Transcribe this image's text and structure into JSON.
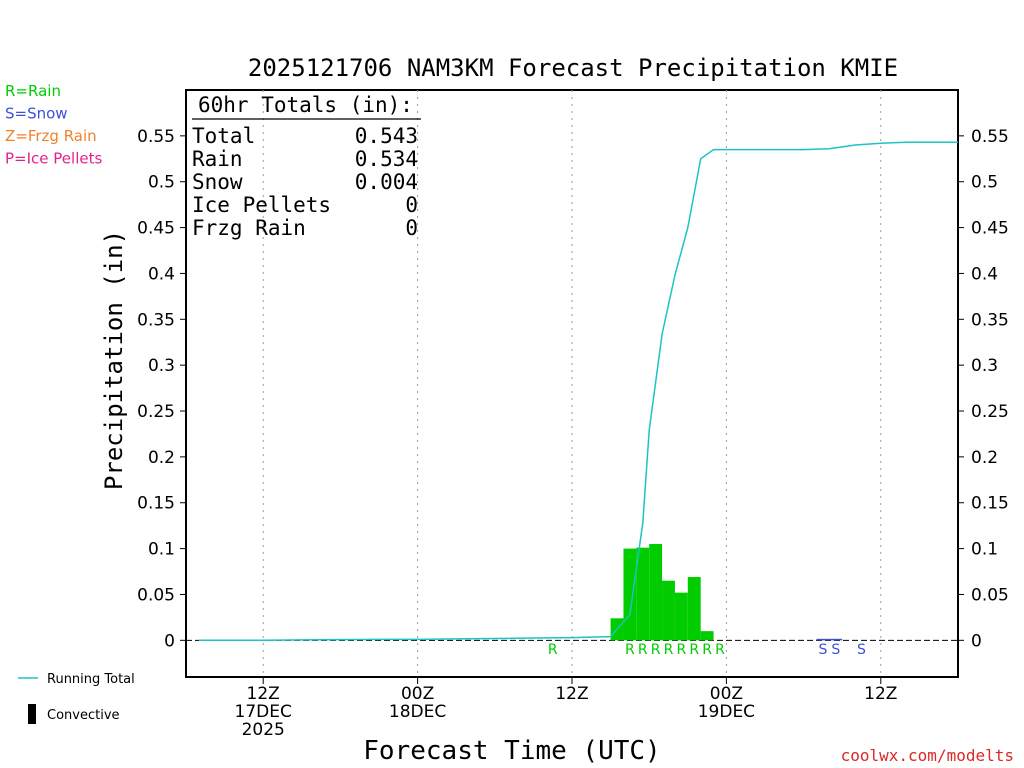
{
  "chart_data": {
    "type": "bar",
    "title": "2025121706 NAM3KM Forecast Precipitation KMIE",
    "xlabel": "Forecast Time (UTC)",
    "ylabel": "Precipitation (in)",
    "ylim": [
      -0.04,
      0.6
    ],
    "yticks": [
      0,
      0.05,
      0.1,
      0.15,
      0.2,
      0.25,
      0.3,
      0.35,
      0.4,
      0.45,
      0.5,
      0.55
    ],
    "ytick_labels": [
      "0",
      "0.05",
      "0.1",
      "0.15",
      "0.2",
      "0.25",
      "0.3",
      "0.35",
      "0.4",
      "0.45",
      "0.5",
      "0.55"
    ],
    "x_axis": {
      "unit": "forecast hour",
      "xlim": [
        0,
        60
      ],
      "ticks": [
        {
          "hour": 6,
          "lines": [
            "12Z",
            "17DEC",
            "2025"
          ]
        },
        {
          "hour": 18,
          "lines": [
            "00Z",
            "18DEC"
          ]
        },
        {
          "hour": 30,
          "lines": [
            "12Z"
          ]
        },
        {
          "hour": 42,
          "lines": [
            "00Z",
            "19DEC"
          ]
        },
        {
          "hour": 54,
          "lines": [
            "12Z"
          ]
        }
      ]
    },
    "grid": "vertical dotted at 12-hour ticks",
    "totals_box": {
      "heading": "60hr Totals (in):",
      "rows": [
        {
          "label": "Total",
          "value": "0.543"
        },
        {
          "label": "Rain",
          "value": "0.534"
        },
        {
          "label": "Snow",
          "value": "0.004"
        },
        {
          "label": "Ice Pellets",
          "value": "0"
        },
        {
          "label": "Frzg Rain",
          "value": "0"
        }
      ]
    },
    "type_legend": [
      {
        "text": "R=Rain",
        "color": "#00cc00"
      },
      {
        "text": "S=Snow",
        "color": "#3c50dc"
      },
      {
        "text": "Z=Frzg Rain",
        "color": "#f0822d"
      },
      {
        "text": "P=Ice Pellets",
        "color": "#e6208a"
      }
    ],
    "series": [
      {
        "name": "Running Total",
        "type": "line",
        "color": "#1ec3c3",
        "x": [
          1,
          3,
          6,
          9,
          12,
          15,
          18,
          21,
          24,
          27,
          30,
          33,
          34.5,
          35.5,
          36,
          37,
          38,
          39,
          40,
          41,
          42,
          43,
          44,
          46,
          48,
          50,
          52,
          54,
          56,
          58,
          60
        ],
        "y": [
          0,
          0,
          0,
          0.0005,
          0.0008,
          0.001,
          0.001,
          0.0015,
          0.002,
          0.0025,
          0.003,
          0.004,
          0.028,
          0.128,
          0.229,
          0.334,
          0.398,
          0.45,
          0.525,
          0.535,
          0.535,
          0.535,
          0.535,
          0.535,
          0.535,
          0.536,
          0.54,
          0.542,
          0.543,
          0.543,
          0.543
        ]
      },
      {
        "name": "Rain",
        "type": "bar",
        "color": "#00cc00",
        "bar_width_hours": 1,
        "hours": [
          34,
          35,
          36,
          37,
          38,
          39,
          40,
          41,
          42
        ],
        "values": [
          0.024,
          0.1,
          0.101,
          0.105,
          0.065,
          0.052,
          0.069,
          0.01,
          0.0
        ]
      },
      {
        "name": "Snow",
        "type": "bar",
        "color": "#3c50dc",
        "bar_width_hours": 1,
        "hours": [
          50,
          51
        ],
        "values": [
          0.0015,
          0.0015
        ]
      },
      {
        "name": "Convective",
        "type": "bar",
        "color": "#000000",
        "values": []
      }
    ],
    "type_markers": [
      {
        "hour": 29,
        "text": "R",
        "color": "#00cc00"
      },
      {
        "hour": 35,
        "text": "R",
        "color": "#00cc00"
      },
      {
        "hour": 36,
        "text": "R",
        "color": "#00cc00"
      },
      {
        "hour": 37,
        "text": "R",
        "color": "#00cc00"
      },
      {
        "hour": 38,
        "text": "R",
        "color": "#00cc00"
      },
      {
        "hour": 39,
        "text": "R",
        "color": "#00cc00"
      },
      {
        "hour": 40,
        "text": "R",
        "color": "#00cc00"
      },
      {
        "hour": 41,
        "text": "R",
        "color": "#00cc00"
      },
      {
        "hour": 42,
        "text": "R",
        "color": "#00cc00"
      },
      {
        "hour": 50,
        "text": "S",
        "color": "#3c50dc"
      },
      {
        "hour": 51,
        "text": "S",
        "color": "#3c50dc"
      },
      {
        "hour": 53,
        "text": "S",
        "color": "#3c50dc"
      }
    ],
    "bottom_legend": [
      {
        "text": "Running Total",
        "symbol": "line",
        "color": "#1ec3c3"
      },
      {
        "text": "Convective",
        "symbol": "bar",
        "color": "#000000"
      }
    ]
  },
  "credit": "coolwx.com/modelts"
}
